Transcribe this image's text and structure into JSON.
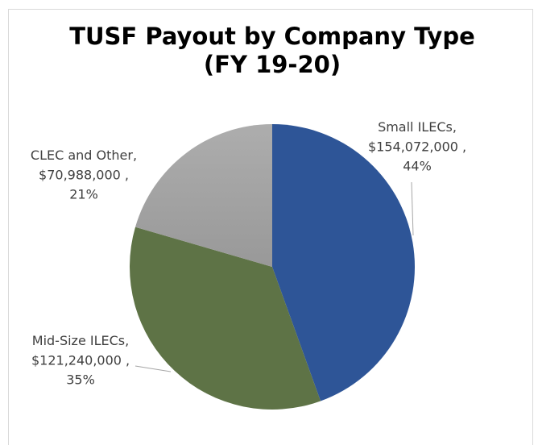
{
  "chart_data": {
    "type": "pie",
    "title": [
      "TUSF Payout by Company Type",
      "(FY 19-20)"
    ],
    "categories": [
      "Small ILECs",
      "Mid-Size ILECs",
      "CLEC and Other"
    ],
    "values": [
      154072000,
      121240000,
      70988000
    ],
    "value_labels": [
      "$154,072,000",
      "$121,240,000",
      "$70,988,000"
    ],
    "percent_labels": [
      "44%",
      "35%",
      "21%"
    ],
    "separator": ",",
    "colors": [
      "#2e5597",
      "#5e7346",
      "#a6a6a6"
    ],
    "start_angle": 0,
    "direction": "clockwise"
  }
}
